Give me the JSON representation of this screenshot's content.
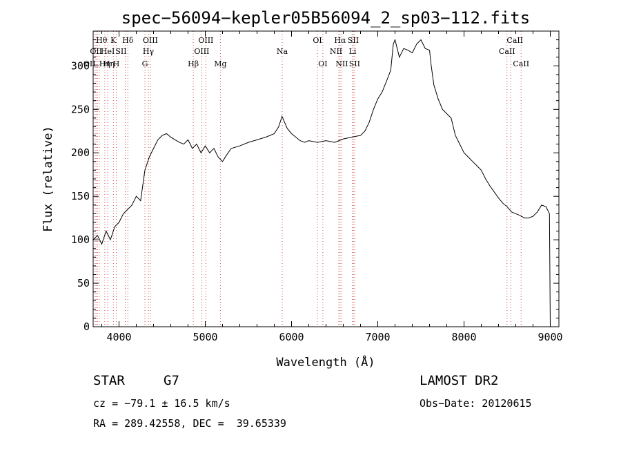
{
  "chart_data": {
    "type": "line",
    "title": "spec−56094−kepler05B56094_2_sp03−112.fits",
    "xlabel": "Wavelength (Å)",
    "ylabel": "Flux (relative)",
    "xlim": [
      3700,
      9100
    ],
    "ylim": [
      0,
      340
    ],
    "xticks": [
      4000,
      5000,
      6000,
      7000,
      8000,
      9000
    ],
    "yticks": [
      0,
      50,
      100,
      150,
      200,
      250,
      300
    ],
    "grid": false,
    "series": [
      {
        "x": [
          3700,
          3750,
          3800,
          3850,
          3900,
          3950,
          4000,
          4050,
          4100,
          4150,
          4200,
          4250,
          4300,
          4350,
          4400,
          4450,
          4500,
          4550,
          4600,
          4650,
          4700,
          4750,
          4800,
          4850,
          4900,
          4950,
          5000,
          5050,
          5100,
          5150,
          5200,
          5250,
          5300,
          5400,
          5500,
          5600,
          5700,
          5800,
          5850,
          5890,
          5920,
          5950,
          6000,
          6050,
          6100,
          6150,
          6200,
          6300,
          6400,
          6500,
          6550,
          6600,
          6700,
          6750,
          6800,
          6850,
          6900,
          6950,
          7000,
          7050,
          7100,
          7150,
          7180,
          7200,
          7250,
          7300,
          7350,
          7400,
          7450,
          7500,
          7550,
          7600,
          7620,
          7650,
          7700,
          7750,
          7800,
          7850,
          7900,
          7950,
          8000,
          8050,
          8100,
          8150,
          8200,
          8250,
          8300,
          8350,
          8400,
          8450,
          8500,
          8550,
          8600,
          8650,
          8700,
          8750,
          8800,
          8850,
          8900,
          8950,
          8990,
          9000
        ],
        "y": [
          100,
          105,
          95,
          110,
          100,
          115,
          120,
          130,
          135,
          140,
          150,
          145,
          180,
          195,
          205,
          215,
          220,
          222,
          218,
          215,
          212,
          210,
          215,
          205,
          210,
          200,
          208,
          200,
          205,
          195,
          190,
          198,
          205,
          208,
          212,
          215,
          218,
          222,
          230,
          242,
          235,
          228,
          222,
          218,
          214,
          212,
          214,
          212,
          214,
          212,
          214,
          216,
          218,
          219,
          220,
          225,
          235,
          250,
          262,
          270,
          282,
          295,
          325,
          330,
          310,
          320,
          318,
          315,
          325,
          330,
          320,
          318,
          300,
          278,
          262,
          250,
          245,
          240,
          220,
          210,
          200,
          195,
          190,
          185,
          180,
          170,
          162,
          155,
          148,
          142,
          138,
          132,
          130,
          128,
          125,
          125,
          127,
          132,
          140,
          138,
          130,
          0
        ]
      }
    ],
    "lines": [
      {
        "x": 3722,
        "label": "OII",
        "row": 3,
        "dx": -8
      },
      {
        "x": 3734,
        "label": "OII",
        "row": 2,
        "dx": 0
      },
      {
        "x": 3750,
        "label": "Hθ",
        "row": 1,
        "dx": 6
      },
      {
        "x": 3771,
        "label": "Hη",
        "row": 3,
        "dx": 14
      },
      {
        "x": 3835,
        "label": "Hη",
        "row": 3,
        "dx": 0
      },
      {
        "x": 3869,
        "label": "HeI",
        "row": 2,
        "dx": 0
      },
      {
        "x": 3934,
        "label": "K",
        "row": 1,
        "dx": 0
      },
      {
        "x": 3968,
        "label": "H",
        "row": 3,
        "dx": 0
      },
      {
        "x": 4072,
        "label": "SII",
        "row": 2,
        "dx": -6
      },
      {
        "x": 4102,
        "label": "Hδ",
        "row": 1,
        "dx": 0
      },
      {
        "x": 4300,
        "label": "G",
        "row": 3,
        "dx": 0
      },
      {
        "x": 4340,
        "label": "Hγ",
        "row": 2,
        "dx": 0
      },
      {
        "x": 4363,
        "label": "OIII",
        "row": 1,
        "dx": 0
      },
      {
        "x": 4861,
        "label": "Hβ",
        "row": 3,
        "dx": 0
      },
      {
        "x": 4959,
        "label": "OIII",
        "row": 2,
        "dx": 0
      },
      {
        "x": 5007,
        "label": "OIII",
        "row": 1,
        "dx": 0
      },
      {
        "x": 5175,
        "label": "Mg",
        "row": 3,
        "dx": 0
      },
      {
        "x": 5892,
        "label": "Na",
        "row": 2,
        "dx": 0
      },
      {
        "x": 6300,
        "label": "OI",
        "row": 1,
        "dx": 0
      },
      {
        "x": 6363,
        "label": "OI",
        "row": 3,
        "dx": 0
      },
      {
        "x": 6548,
        "label": "NII",
        "row": 2,
        "dx": -4
      },
      {
        "x": 6563,
        "label": "Hα",
        "row": 1,
        "dx": 0
      },
      {
        "x": 6583,
        "label": "NII",
        "row": 3,
        "dx": 0
      },
      {
        "x": 6708,
        "label": "Li",
        "row": 2,
        "dx": 0
      },
      {
        "x": 6716,
        "label": "SII",
        "row": 1,
        "dx": 0
      },
      {
        "x": 6731,
        "label": "SII",
        "row": 3,
        "dx": 0
      },
      {
        "x": 8498,
        "label": "CaII",
        "row": 2,
        "dx": 0
      },
      {
        "x": 8542,
        "label": "CaII",
        "row": 1,
        "dx": 6
      },
      {
        "x": 8662,
        "label": "CaII",
        "row": 3,
        "dx": 0
      }
    ]
  },
  "info": {
    "class_label": "STAR",
    "subclass": "G7",
    "survey": "LAMOST DR2",
    "cz": "cz = −79.1 ± 16.5 km/s",
    "obs_date": "Obs−Date: 20120615",
    "coords": "RA = 289.42558, DEC =  39.65339"
  }
}
